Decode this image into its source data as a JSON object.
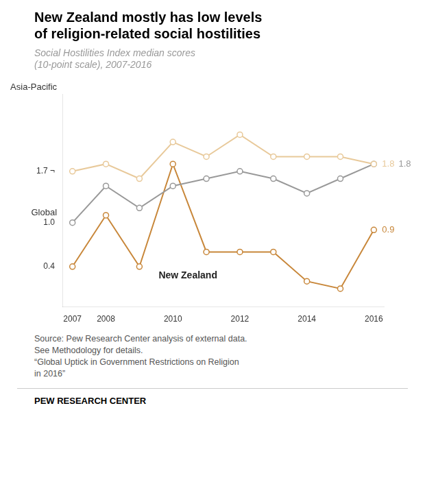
{
  "chart_data": {
    "type": "line",
    "title": "New Zealand mostly has low levels\nof religion-related social hostilities",
    "subtitle": "Social Hostilities Index median scores\n(10-point scale), 2007-2016",
    "x": [
      2007,
      2008,
      2009,
      2010,
      2011,
      2012,
      2013,
      2014,
      2015,
      2016
    ],
    "series": [
      {
        "name": "Asia-Pacific",
        "color": "#e8c99a",
        "values": [
          1.7,
          1.8,
          1.6,
          2.1,
          1.9,
          2.2,
          1.9,
          1.9,
          1.9,
          1.8
        ]
      },
      {
        "name": "Global",
        "color": "#999999",
        "values": [
          1.0,
          1.5,
          1.2,
          1.5,
          1.6,
          1.7,
          1.6,
          1.4,
          1.6,
          1.8
        ]
      },
      {
        "name": "New Zealand",
        "color": "#c8873a",
        "values": [
          0.4,
          1.1,
          0.4,
          1.8,
          0.6,
          0.6,
          0.6,
          0.2,
          0.1,
          0.9
        ]
      }
    ],
    "xlim": [
      2006.7,
      2016.3
    ],
    "xticks": [
      2007,
      2008,
      2010,
      2012,
      2014,
      2016
    ],
    "ylim": [
      -0.15,
      2.75
    ],
    "yticks": [
      0.4,
      {
        "value": 1.0,
        "label": "1.0"
      },
      {
        "value": 1.7,
        "label": "1.7 ¬"
      }
    ],
    "grid": false,
    "marker": "circle",
    "annotations": [
      {
        "text": "1.8",
        "x": 2016,
        "y": 1.8,
        "color": "#e8c99a"
      },
      {
        "text": "1.8",
        "x": 2016,
        "y": 1.8,
        "color": "#999999"
      },
      {
        "text": "0.9",
        "x": 2016,
        "y": 0.9,
        "color": "#c8873a"
      }
    ],
    "source": "Source: Pew Research Center analysis of external data.\nSee Methodology for details.\n“Global Uptick in Government Restrictions on Religion\nin 2016”",
    "footer": "PEW RESEARCH CENTER"
  }
}
